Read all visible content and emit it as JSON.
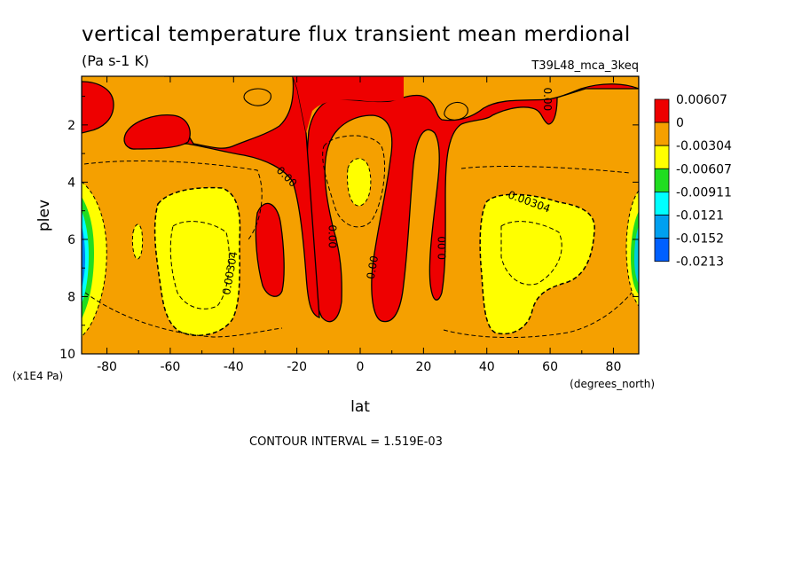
{
  "chart_data": {
    "type": "heatmap",
    "title": "vertical temperature flux transient mean merdional",
    "units": "(Pa s-1 K)",
    "run_label": "T39L48_mca_3keq",
    "xlabel": "lat",
    "xunits": "(degrees_north)",
    "ylabel": "plev",
    "yunits": "(x1E4 Pa)",
    "xlim": [
      -88,
      88
    ],
    "ylim": [
      0.3,
      10
    ],
    "y_inverted": true,
    "x_ticks": [
      -80,
      -60,
      -40,
      -20,
      0,
      20,
      40,
      60,
      80
    ],
    "x_tick_labels": [
      "-80",
      "-60",
      "-40",
      "-20",
      "0",
      "20",
      "40",
      "60",
      "80"
    ],
    "y_ticks": [
      2,
      4,
      6,
      8,
      10
    ],
    "y_tick_labels": [
      "2",
      "4",
      "6",
      "8",
      "10"
    ],
    "legend_placement": "right",
    "legend": [
      {
        "label": "0.00607",
        "color": "#ee0000"
      },
      {
        "label": "0",
        "color": "#f5a000"
      },
      {
        "label": "-0.00304",
        "color": "#ffff00"
      },
      {
        "label": "-0.00607",
        "color": "#20dd20"
      },
      {
        "label": "-0.00911",
        "color": "#00ffff"
      },
      {
        "label": "-0.0121",
        "color": "#00a0f0"
      },
      {
        "label": "-0.0152",
        "color": "#0060ff"
      },
      {
        "label": "-0.0213",
        "color": ""
      }
    ],
    "contour_labels": [
      {
        "text": "0.00",
        "lat": -24,
        "plev": 3.9,
        "angle": 45
      },
      {
        "text": "0.00",
        "lat": -10,
        "plev": 5.9,
        "angle": 90
      },
      {
        "text": "0.00",
        "lat": 5,
        "plev": 7.0,
        "angle": -80
      },
      {
        "text": "0.00",
        "lat": 27,
        "plev": 6.3,
        "angle": -90
      },
      {
        "text": "0.00",
        "lat": 58,
        "plev": 1.1,
        "angle": 90
      },
      {
        "text": "0.00304",
        "lat": 53,
        "plev": 4.8,
        "angle": 20
      },
      {
        "text": "0.00304",
        "lat": -40,
        "plev": 7.2,
        "angle": -80
      }
    ],
    "contour_interval": "CONTOUR INTERVAL = 1.519E-03"
  }
}
